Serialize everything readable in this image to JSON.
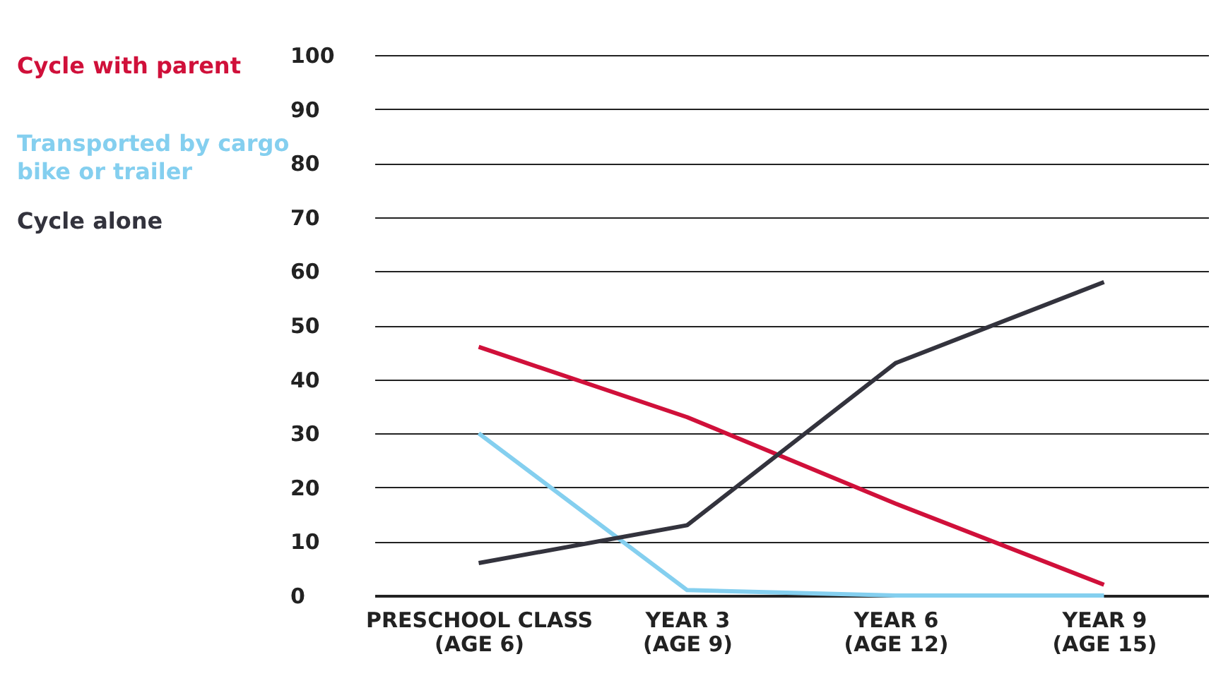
{
  "chart_data": {
    "type": "line",
    "categories": [
      "PRESCHOOL CLASS (AGE 6)",
      "YEAR 3 (AGE 9)",
      "YEAR 6 (AGE 12)",
      "YEAR 9 (AGE 15)"
    ],
    "series": [
      {
        "name": "Cycle with parent",
        "color": "#d0103a",
        "values": [
          46,
          33,
          17,
          2
        ]
      },
      {
        "name": "Transported by cargo bike or trailer",
        "color": "#84cfef",
        "values": [
          30,
          1,
          0,
          0
        ]
      },
      {
        "name": "Cycle alone",
        "color": "#33333d",
        "values": [
          6,
          13,
          43,
          58
        ]
      }
    ],
    "ylim": [
      0,
      100
    ],
    "yticks": [
      0,
      10,
      20,
      30,
      40,
      50,
      60,
      70,
      80,
      90,
      100
    ],
    "grid": "y",
    "legend": "left",
    "marker": "none",
    "line_style": "solid"
  }
}
